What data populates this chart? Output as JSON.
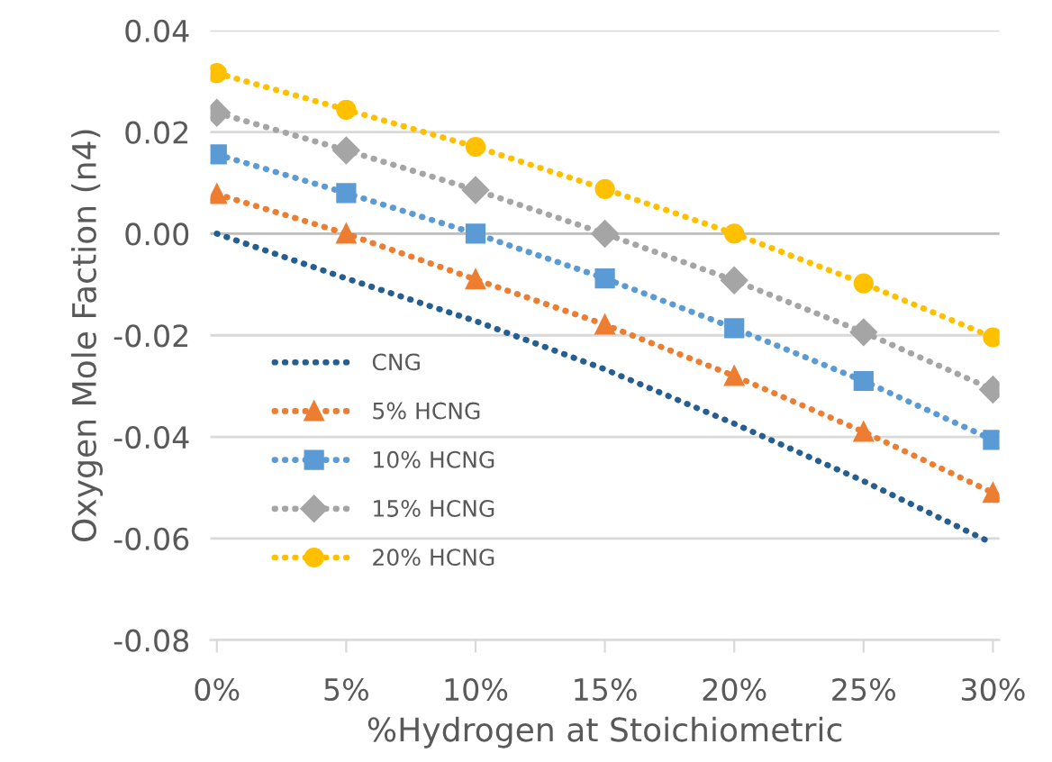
{
  "chart_data": {
    "type": "line",
    "xlabel": "%Hydrogen at Stoichiometric",
    "ylabel": "Oxygen Mole Faction (n4)",
    "categories": [
      "0%",
      "5%",
      "10%",
      "15%",
      "20%",
      "25%",
      "30%"
    ],
    "series": [
      {
        "name": "CNG",
        "color": "#255e91",
        "marker": "none",
        "values": [
          0.0,
          -0.0088,
          -0.0172,
          -0.0267,
          -0.0374,
          -0.0487,
          -0.061
        ]
      },
      {
        "name": "5% HCNG",
        "color": "#ed7d31",
        "marker": "triangle",
        "values": [
          0.0078,
          0.0,
          -0.009,
          -0.0179,
          -0.028,
          -0.039,
          -0.051
        ]
      },
      {
        "name": "10% HCNG",
        "color": "#5b9bd5",
        "marker": "square",
        "values": [
          0.0156,
          0.008,
          0.0,
          -0.0088,
          -0.0186,
          -0.029,
          -0.0406
        ]
      },
      {
        "name": "15% HCNG",
        "color": "#a5a5a5",
        "marker": "diamond",
        "values": [
          0.0238,
          0.0164,
          0.0086,
          0.0,
          -0.0092,
          -0.0194,
          -0.0307
        ]
      },
      {
        "name": "20% HCNG",
        "color": "#ffc000",
        "marker": "circle",
        "values": [
          0.0316,
          0.0244,
          0.0171,
          0.0088,
          0.0,
          -0.0098,
          -0.0204
        ]
      }
    ],
    "ylim": [
      -0.08,
      0.04
    ],
    "yticks": [
      {
        "value": -0.08,
        "label": "-0.08"
      },
      {
        "value": -0.06,
        "label": "-0.06"
      },
      {
        "value": -0.04,
        "label": "-0.04"
      },
      {
        "value": -0.02,
        "label": "-0.02"
      },
      {
        "value": 0,
        "label": "0.00"
      },
      {
        "value": 0.02,
        "label": "0.02"
      },
      {
        "value": 0.04,
        "label": "0.04"
      }
    ],
    "grid": "y",
    "legend": "bottom left",
    "line_style": "dotted"
  }
}
